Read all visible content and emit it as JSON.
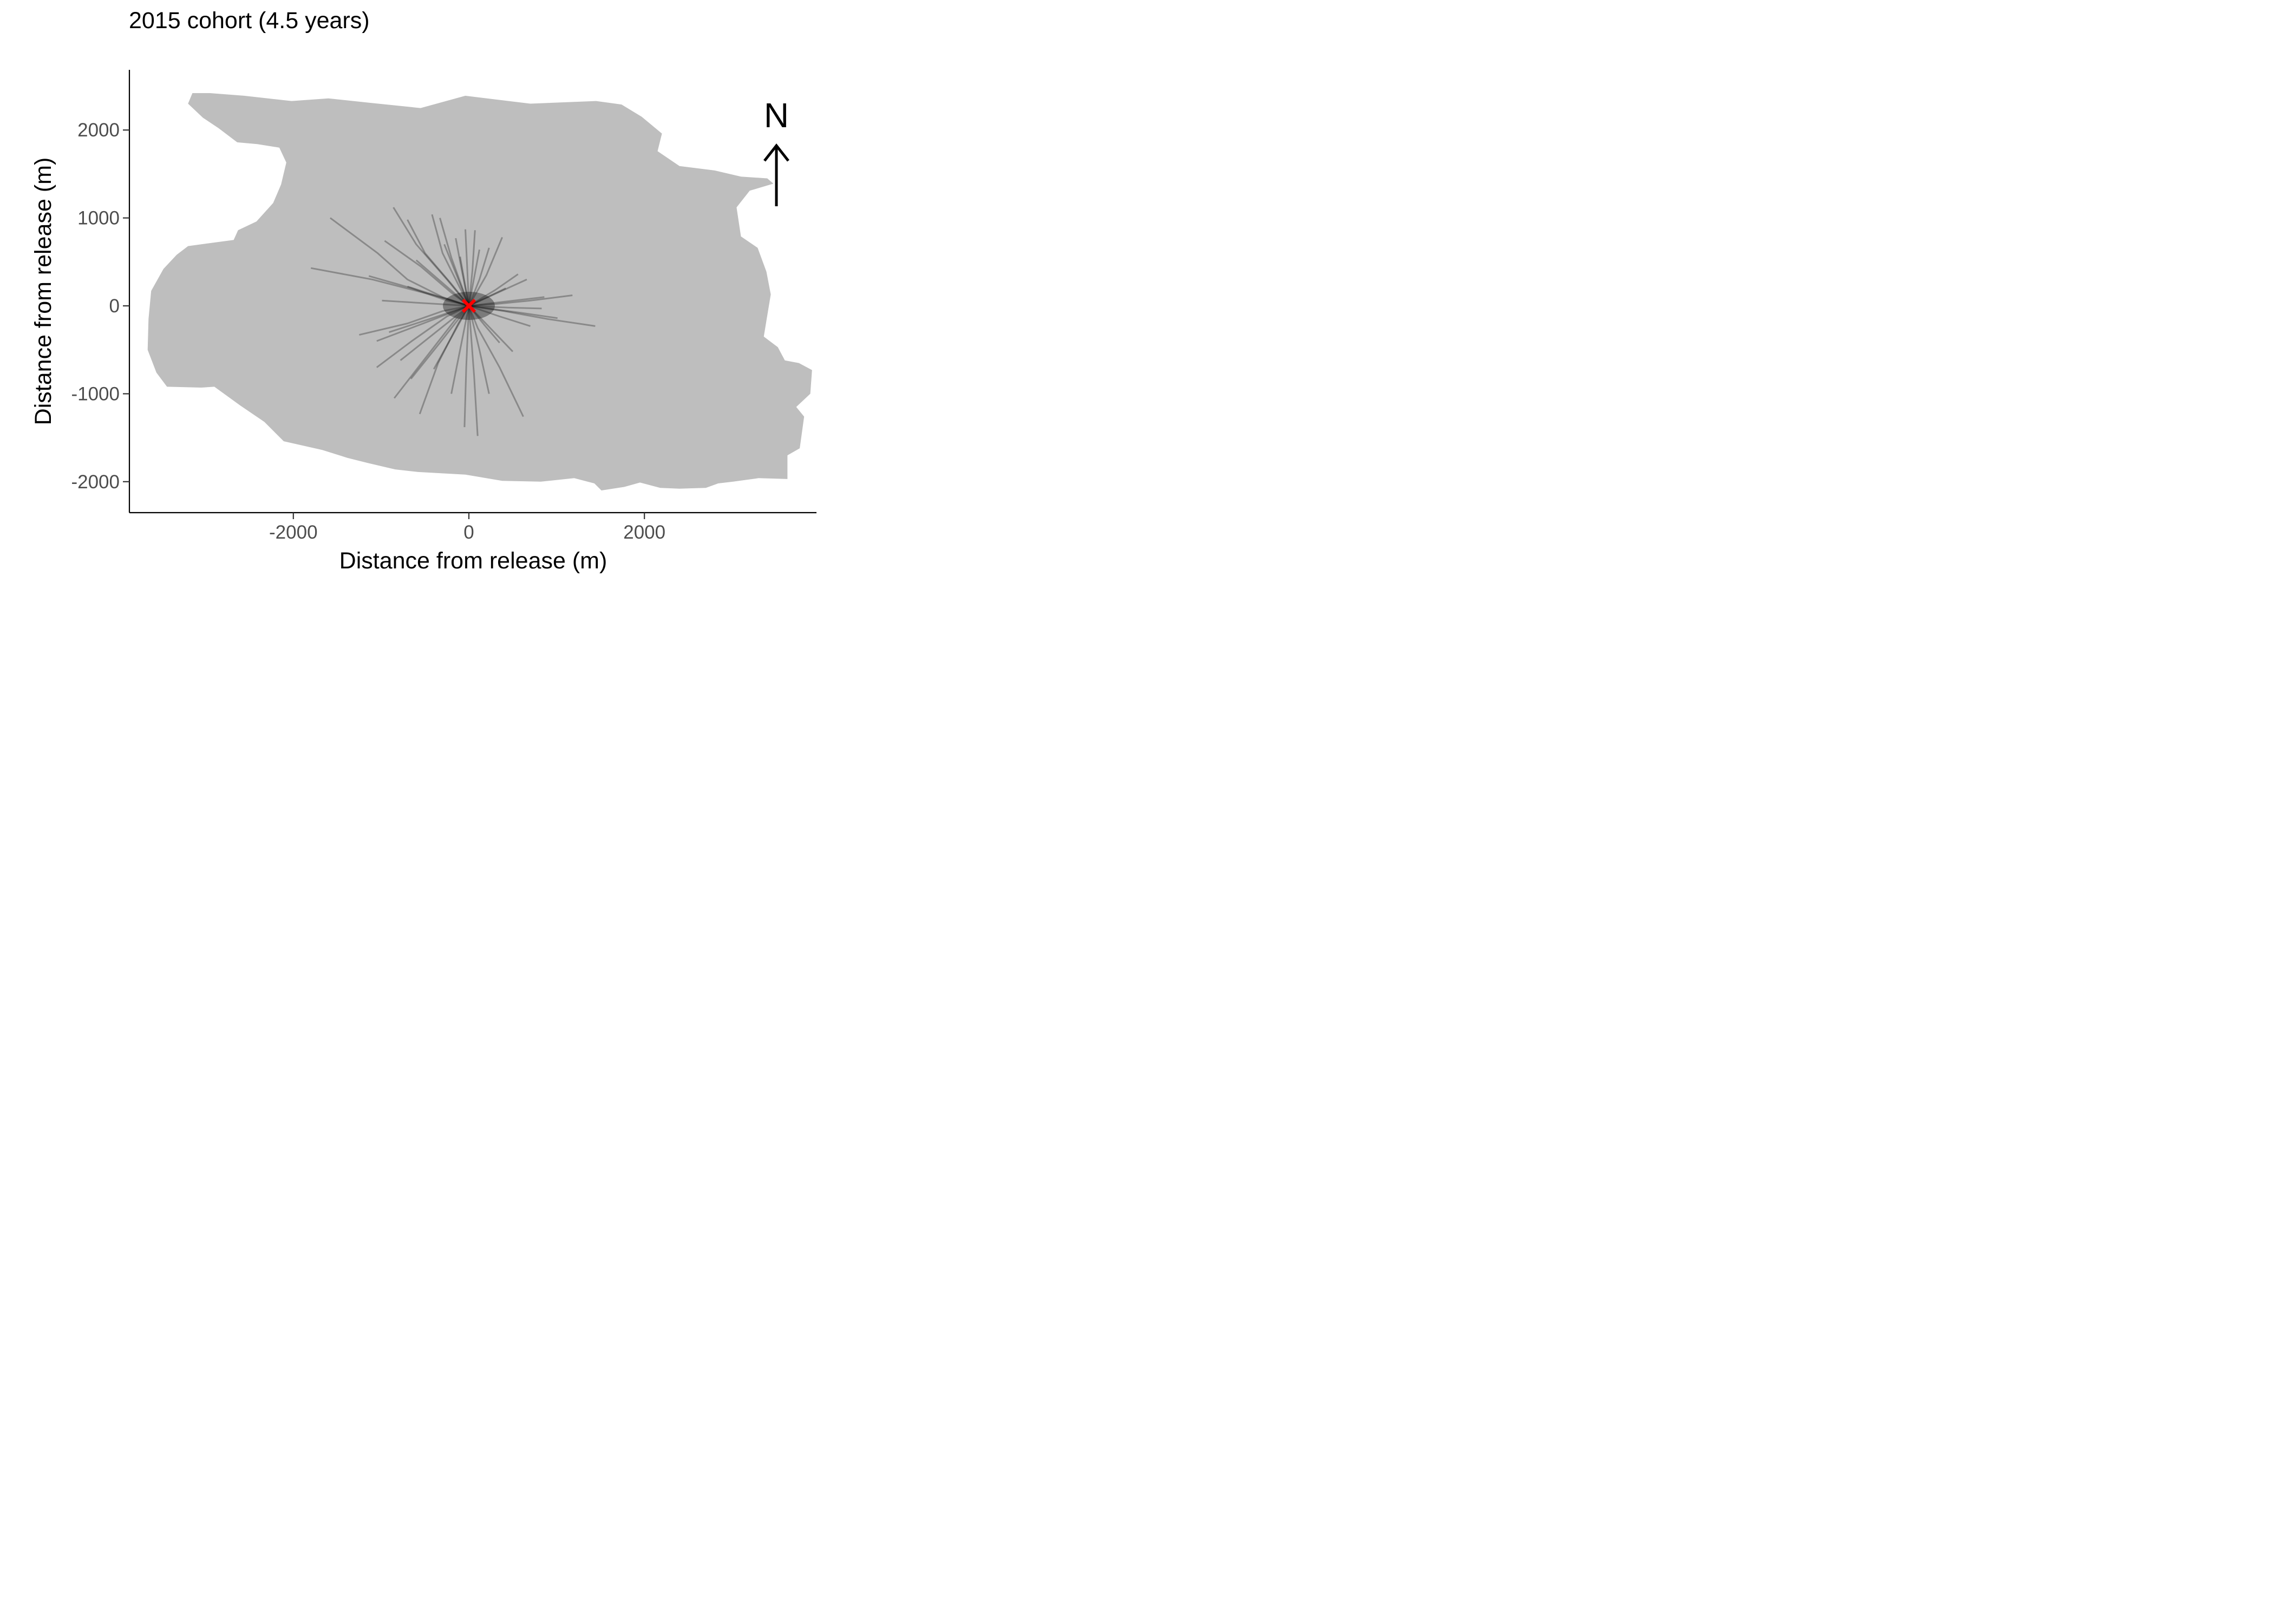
{
  "chart_data": {
    "type": "line",
    "title": "2015 cohort (4.5 years)",
    "xlabel": "Distance from release (m)",
    "ylabel": "Distance from release (m)",
    "xlim": [
      -3900,
      3950
    ],
    "ylim": [
      -2350,
      2650
    ],
    "x_ticks": [
      -2000,
      0,
      2000
    ],
    "x_tick_labels": [
      "-2000",
      "0",
      "2000"
    ],
    "y_ticks": [
      -2000,
      -1000,
      0,
      1000,
      2000
    ],
    "y_tick_labels": [
      "-2000",
      "-1000",
      "0",
      "1000",
      "2000"
    ],
    "grid": false,
    "legend": "none",
    "colors": {
      "island": "#bebebe",
      "tracks": "#000000",
      "release_marker": "#ff0000"
    },
    "north_arrow": {
      "label": "N",
      "position": "top-right"
    },
    "release_point": {
      "x": 0,
      "y": 0,
      "marker": "x"
    },
    "island_outline": [
      [
        -3150,
        2420
      ],
      [
        -2950,
        2420
      ],
      [
        -2560,
        2390
      ],
      [
        -2020,
        2330
      ],
      [
        -1600,
        2360
      ],
      [
        -1130,
        2310
      ],
      [
        -550,
        2250
      ],
      [
        -40,
        2390
      ],
      [
        700,
        2300
      ],
      [
        1450,
        2330
      ],
      [
        1740,
        2290
      ],
      [
        1970,
        2150
      ],
      [
        2200,
        1960
      ],
      [
        2150,
        1760
      ],
      [
        2400,
        1590
      ],
      [
        2800,
        1540
      ],
      [
        3100,
        1470
      ],
      [
        3400,
        1450
      ],
      [
        3470,
        1390
      ],
      [
        3200,
        1310
      ],
      [
        3050,
        1120
      ],
      [
        3100,
        790
      ],
      [
        3290,
        660
      ],
      [
        3390,
        390
      ],
      [
        3440,
        130
      ],
      [
        3390,
        -170
      ],
      [
        3360,
        -350
      ],
      [
        3520,
        -470
      ],
      [
        3600,
        -620
      ],
      [
        3760,
        -650
      ],
      [
        3910,
        -730
      ],
      [
        3890,
        -1000
      ],
      [
        3730,
        -1150
      ],
      [
        3820,
        -1260
      ],
      [
        3770,
        -1620
      ],
      [
        3630,
        -1700
      ],
      [
        3630,
        -1970
      ],
      [
        3300,
        -1960
      ],
      [
        3010,
        -2000
      ],
      [
        2840,
        -2020
      ],
      [
        2700,
        -2070
      ],
      [
        2400,
        -2080
      ],
      [
        2180,
        -2070
      ],
      [
        1950,
        -2010
      ],
      [
        1770,
        -2060
      ],
      [
        1510,
        -2100
      ],
      [
        1430,
        -2020
      ],
      [
        1200,
        -1960
      ],
      [
        820,
        -2000
      ],
      [
        380,
        -1990
      ],
      [
        -40,
        -1920
      ],
      [
        -580,
        -1890
      ],
      [
        -840,
        -1860
      ],
      [
        -1140,
        -1790
      ],
      [
        -1380,
        -1730
      ],
      [
        -1670,
        -1640
      ],
      [
        -2110,
        -1540
      ],
      [
        -2330,
        -1320
      ],
      [
        -2610,
        -1130
      ],
      [
        -2900,
        -920
      ],
      [
        -3050,
        -930
      ],
      [
        -3440,
        -920
      ],
      [
        -3560,
        -760
      ],
      [
        -3660,
        -500
      ],
      [
        -3650,
        -150
      ],
      [
        -3620,
        170
      ],
      [
        -3480,
        420
      ],
      [
        -3330,
        580
      ],
      [
        -3200,
        680
      ],
      [
        -2680,
        750
      ],
      [
        -2630,
        860
      ],
      [
        -2420,
        960
      ],
      [
        -2230,
        1170
      ],
      [
        -2140,
        1380
      ],
      [
        -2080,
        1630
      ],
      [
        -2160,
        1800
      ],
      [
        -2410,
        1840
      ],
      [
        -2640,
        1860
      ],
      [
        -2850,
        2020
      ],
      [
        -3030,
        2140
      ],
      [
        -3200,
        2300
      ]
    ],
    "tracks": [
      [
        [
          -1580,
          1000
        ],
        [
          -1040,
          600
        ],
        [
          -700,
          300
        ],
        [
          -300,
          100
        ],
        [
          0,
          0
        ]
      ],
      [
        [
          -1800,
          430
        ],
        [
          -1100,
          300
        ],
        [
          -400,
          120
        ],
        [
          0,
          0
        ]
      ],
      [
        [
          -860,
          1120
        ],
        [
          -600,
          700
        ],
        [
          -250,
          300
        ],
        [
          0,
          0
        ]
      ],
      [
        [
          -700,
          980
        ],
        [
          -500,
          600
        ],
        [
          -200,
          250
        ],
        [
          0,
          0
        ]
      ],
      [
        [
          -420,
          1040
        ],
        [
          -300,
          600
        ],
        [
          -100,
          200
        ],
        [
          0,
          0
        ]
      ],
      [
        [
          -150,
          770
        ],
        [
          -80,
          400
        ],
        [
          0,
          0
        ]
      ],
      [
        [
          -40,
          870
        ],
        [
          -20,
          450
        ],
        [
          0,
          0
        ]
      ],
      [
        [
          70,
          860
        ],
        [
          40,
          400
        ],
        [
          0,
          0
        ]
      ],
      [
        [
          380,
          780
        ],
        [
          200,
          350
        ],
        [
          0,
          0
        ]
      ],
      [
        [
          1180,
          120
        ],
        [
          700,
          60
        ],
        [
          300,
          20
        ],
        [
          0,
          0
        ]
      ],
      [
        [
          1440,
          -230
        ],
        [
          900,
          -150
        ],
        [
          400,
          -60
        ],
        [
          0,
          0
        ]
      ],
      [
        [
          620,
          -1260
        ],
        [
          350,
          -700
        ],
        [
          100,
          -250
        ],
        [
          0,
          0
        ]
      ],
      [
        [
          100,
          -1480
        ],
        [
          60,
          -800
        ],
        [
          0,
          0
        ]
      ],
      [
        [
          -50,
          -1380
        ],
        [
          -30,
          -700
        ],
        [
          0,
          0
        ]
      ],
      [
        [
          -560,
          -1230
        ],
        [
          -350,
          -650
        ],
        [
          -120,
          -200
        ],
        [
          0,
          0
        ]
      ],
      [
        [
          -850,
          -1050
        ],
        [
          -500,
          -600
        ],
        [
          -150,
          -150
        ],
        [
          0,
          0
        ]
      ],
      [
        [
          -1050,
          -700
        ],
        [
          -650,
          -400
        ],
        [
          -250,
          -120
        ],
        [
          0,
          0
        ]
      ],
      [
        [
          -1250,
          -330
        ],
        [
          -700,
          -200
        ],
        [
          -300,
          -60
        ],
        [
          0,
          0
        ]
      ],
      [
        [
          -1140,
          340
        ],
        [
          -650,
          200
        ],
        [
          -250,
          60
        ],
        [
          0,
          0
        ]
      ],
      [
        [
          -960,
          740
        ],
        [
          -550,
          450
        ],
        [
          -200,
          150
        ],
        [
          0,
          0
        ]
      ],
      [
        [
          -330,
          1000
        ],
        [
          -200,
          550
        ],
        [
          0,
          0
        ]
      ],
      [
        [
          230,
          660
        ],
        [
          120,
          300
        ],
        [
          0,
          0
        ]
      ],
      [
        [
          560,
          360
        ],
        [
          300,
          180
        ],
        [
          0,
          0
        ]
      ],
      [
        [
          830,
          -30
        ],
        [
          450,
          -20
        ],
        [
          0,
          0
        ]
      ],
      [
        [
          1010,
          -140
        ],
        [
          600,
          -80
        ],
        [
          0,
          0
        ]
      ],
      [
        [
          500,
          -520
        ],
        [
          250,
          -260
        ],
        [
          0,
          0
        ]
      ],
      [
        [
          230,
          -1000
        ],
        [
          120,
          -500
        ],
        [
          0,
          0
        ]
      ],
      [
        [
          -200,
          -1000
        ],
        [
          -100,
          -500
        ],
        [
          0,
          0
        ]
      ],
      [
        [
          -660,
          -830
        ],
        [
          -330,
          -420
        ],
        [
          0,
          0
        ]
      ],
      [
        [
          -910,
          -300
        ],
        [
          -450,
          -150
        ],
        [
          0,
          0
        ]
      ],
      [
        [
          -990,
          60
        ],
        [
          -500,
          30
        ],
        [
          0,
          0
        ]
      ],
      [
        [
          -600,
          520
        ],
        [
          -300,
          260
        ],
        [
          0,
          0
        ]
      ],
      [
        [
          -280,
          700
        ],
        [
          -140,
          350
        ],
        [
          0,
          0
        ]
      ],
      [
        [
          120,
          640
        ],
        [
          60,
          320
        ],
        [
          0,
          0
        ]
      ],
      [
        [
          420,
          200
        ],
        [
          210,
          100
        ],
        [
          0,
          0
        ]
      ],
      [
        [
          700,
          -230
        ],
        [
          350,
          -120
        ],
        [
          0,
          0
        ]
      ],
      [
        [
          350,
          -420
        ],
        [
          170,
          -210
        ],
        [
          0,
          0
        ]
      ],
      [
        [
          -400,
          -720
        ],
        [
          -200,
          -360
        ],
        [
          0,
          0
        ]
      ],
      [
        [
          -780,
          -620
        ],
        [
          -390,
          -310
        ],
        [
          0,
          0
        ]
      ],
      [
        [
          -1050,
          -400
        ],
        [
          -520,
          -200
        ],
        [
          0,
          0
        ]
      ],
      [
        [
          -700,
          220
        ],
        [
          -350,
          110
        ],
        [
          0,
          0
        ]
      ],
      [
        [
          -100,
          560
        ],
        [
          -50,
          280
        ],
        [
          0,
          0
        ]
      ],
      [
        [
          660,
          300
        ],
        [
          330,
          150
        ],
        [
          0,
          0
        ]
      ],
      [
        [
          860,
          100
        ],
        [
          430,
          50
        ],
        [
          0,
          0
        ]
      ]
    ]
  }
}
